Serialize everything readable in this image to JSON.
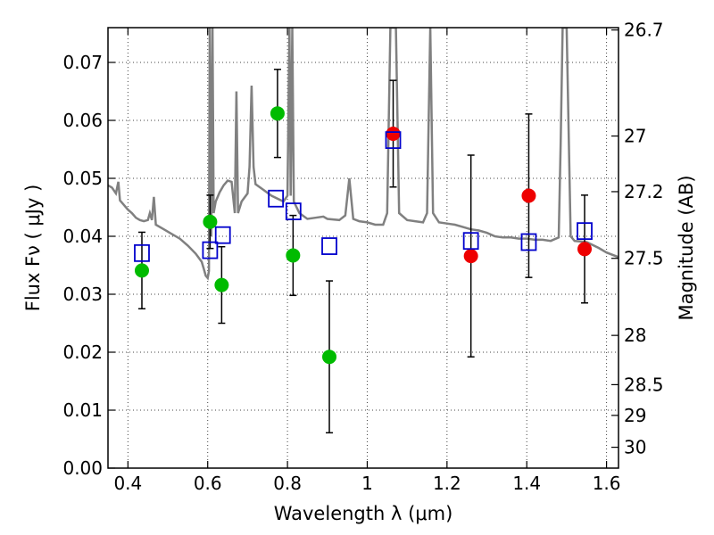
{
  "chart_data": {
    "type": "scatter",
    "xlabel": "Wavelength  λ (μm)",
    "ylabel": "Flux  Fν  ( μJy )",
    "y2label": "Magnitude (AB)",
    "xlim": [
      0.35,
      1.63
    ],
    "ylim": [
      0.0,
      0.076
    ],
    "grid": true,
    "x_ticks": [
      0.4,
      0.6,
      0.8,
      1.0,
      1.2,
      1.4,
      1.6
    ],
    "x_tick_labels": [
      "0.4",
      "0.6",
      "0.8",
      "1",
      "1.2",
      "1.4",
      "1.6"
    ],
    "y_ticks": [
      0.0,
      0.01,
      0.02,
      0.03,
      0.04,
      0.05,
      0.06,
      0.07
    ],
    "y_tick_labels": [
      "0.00",
      "0.01",
      "0.02",
      "0.03",
      "0.04",
      "0.05",
      "0.06",
      "0.07"
    ],
    "mag_ticks": [
      {
        "label": "26.7",
        "flux": 0.0756
      },
      {
        "label": "27",
        "flux": 0.0573
      },
      {
        "label": "27.2",
        "flux": 0.0477
      },
      {
        "label": "27.5",
        "flux": 0.0362
      },
      {
        "label": "28",
        "flux": 0.0229
      },
      {
        "label": "28.5",
        "flux": 0.0144
      },
      {
        "label": "29",
        "flux": 0.0091
      },
      {
        "label": "30",
        "flux": 0.0036
      }
    ],
    "series": [
      {
        "marker": "circle",
        "color": "#00bb00",
        "points": [
          {
            "x": 0.435,
            "y": 0.0341,
            "err": 0.0066
          },
          {
            "x": 0.606,
            "y": 0.0425,
            "err": 0.0046
          },
          {
            "x": 0.635,
            "y": 0.0316,
            "err": 0.0066
          },
          {
            "x": 0.775,
            "y": 0.0612,
            "err": 0.0076
          },
          {
            "x": 0.814,
            "y": 0.0367,
            "err": 0.0069
          },
          {
            "x": 0.905,
            "y": 0.0192,
            "err": 0.0131
          }
        ]
      },
      {
        "marker": "circle",
        "color": "#ee0000",
        "points": [
          {
            "x": 1.065,
            "y": 0.0577,
            "err": 0.0092
          },
          {
            "x": 1.26,
            "y": 0.0366,
            "err": 0.0174
          },
          {
            "x": 1.405,
            "y": 0.047,
            "err": 0.0141
          },
          {
            "x": 1.545,
            "y": 0.0378,
            "err": 0.0093
          }
        ]
      },
      {
        "marker": "square",
        "color": "#0000cc",
        "points": [
          {
            "x": 0.435,
            "y": 0.0371
          },
          {
            "x": 0.606,
            "y": 0.0376
          },
          {
            "x": 0.638,
            "y": 0.0402
          },
          {
            "x": 0.771,
            "y": 0.0465
          },
          {
            "x": 0.815,
            "y": 0.0443
          },
          {
            "x": 0.905,
            "y": 0.0383
          },
          {
            "x": 1.065,
            "y": 0.0566
          },
          {
            "x": 1.26,
            "y": 0.0392
          },
          {
            "x": 1.405,
            "y": 0.039
          },
          {
            "x": 1.545,
            "y": 0.0409
          }
        ]
      }
    ],
    "model_spectrum": {
      "color": "#808080",
      "points": [
        [
          0.35,
          0.0488
        ],
        [
          0.36,
          0.0484
        ],
        [
          0.37,
          0.0474
        ],
        [
          0.376,
          0.0494
        ],
        [
          0.38,
          0.0462
        ],
        [
          0.39,
          0.0454
        ],
        [
          0.4,
          0.0446
        ],
        [
          0.41,
          0.044
        ],
        [
          0.42,
          0.0432
        ],
        [
          0.43,
          0.0428
        ],
        [
          0.44,
          0.0426
        ],
        [
          0.45,
          0.0428
        ],
        [
          0.455,
          0.044
        ],
        [
          0.46,
          0.0428
        ],
        [
          0.465,
          0.0468
        ],
        [
          0.47,
          0.042
        ],
        [
          0.49,
          0.0412
        ],
        [
          0.51,
          0.0404
        ],
        [
          0.53,
          0.0396
        ],
        [
          0.55,
          0.0384
        ],
        [
          0.57,
          0.037
        ],
        [
          0.585,
          0.0356
        ],
        [
          0.59,
          0.0344
        ],
        [
          0.595,
          0.0332
        ],
        [
          0.6,
          0.0328
        ],
        [
          0.603,
          0.034
        ],
        [
          0.605,
          0.076
        ],
        [
          0.609,
          0.04
        ],
        [
          0.612,
          0.076
        ],
        [
          0.615,
          0.044
        ],
        [
          0.62,
          0.046
        ],
        [
          0.63,
          0.0476
        ],
        [
          0.64,
          0.0488
        ],
        [
          0.65,
          0.0496
        ],
        [
          0.66,
          0.0494
        ],
        [
          0.668,
          0.044
        ],
        [
          0.672,
          0.065
        ],
        [
          0.676,
          0.044
        ],
        [
          0.685,
          0.046
        ],
        [
          0.7,
          0.0474
        ],
        [
          0.705,
          0.052
        ],
        [
          0.71,
          0.066
        ],
        [
          0.715,
          0.052
        ],
        [
          0.72,
          0.049
        ],
        [
          0.74,
          0.048
        ],
        [
          0.76,
          0.047
        ],
        [
          0.79,
          0.046
        ],
        [
          0.8,
          0.047
        ],
        [
          0.805,
          0.076
        ],
        [
          0.808,
          0.047
        ],
        [
          0.812,
          0.076
        ],
        [
          0.816,
          0.046
        ],
        [
          0.83,
          0.044
        ],
        [
          0.85,
          0.043
        ],
        [
          0.87,
          0.0432
        ],
        [
          0.89,
          0.0434
        ],
        [
          0.9,
          0.043
        ],
        [
          0.93,
          0.0428
        ],
        [
          0.945,
          0.0436
        ],
        [
          0.955,
          0.05
        ],
        [
          0.965,
          0.043
        ],
        [
          0.98,
          0.0426
        ],
        [
          1.0,
          0.0424
        ],
        [
          1.02,
          0.042
        ],
        [
          1.04,
          0.042
        ],
        [
          1.05,
          0.044
        ],
        [
          1.058,
          0.076
        ],
        [
          1.072,
          0.076
        ],
        [
          1.08,
          0.044
        ],
        [
          1.1,
          0.0428
        ],
        [
          1.12,
          0.0426
        ],
        [
          1.14,
          0.0424
        ],
        [
          1.15,
          0.044
        ],
        [
          1.158,
          0.076
        ],
        [
          1.165,
          0.044
        ],
        [
          1.18,
          0.0424
        ],
        [
          1.2,
          0.0422
        ],
        [
          1.22,
          0.042
        ],
        [
          1.24,
          0.0416
        ],
        [
          1.26,
          0.0412
        ],
        [
          1.28,
          0.041
        ],
        [
          1.3,
          0.0406
        ],
        [
          1.32,
          0.04
        ],
        [
          1.34,
          0.0398
        ],
        [
          1.36,
          0.0398
        ],
        [
          1.38,
          0.0396
        ],
        [
          1.4,
          0.0396
        ],
        [
          1.42,
          0.0394
        ],
        [
          1.44,
          0.0394
        ],
        [
          1.46,
          0.0392
        ],
        [
          1.48,
          0.0398
        ],
        [
          1.485,
          0.056
        ],
        [
          1.49,
          0.076
        ],
        [
          1.5,
          0.076
        ],
        [
          1.51,
          0.04
        ],
        [
          1.52,
          0.0392
        ],
        [
          1.55,
          0.039
        ],
        [
          1.58,
          0.038
        ],
        [
          1.6,
          0.0372
        ],
        [
          1.63,
          0.0364
        ]
      ]
    }
  }
}
